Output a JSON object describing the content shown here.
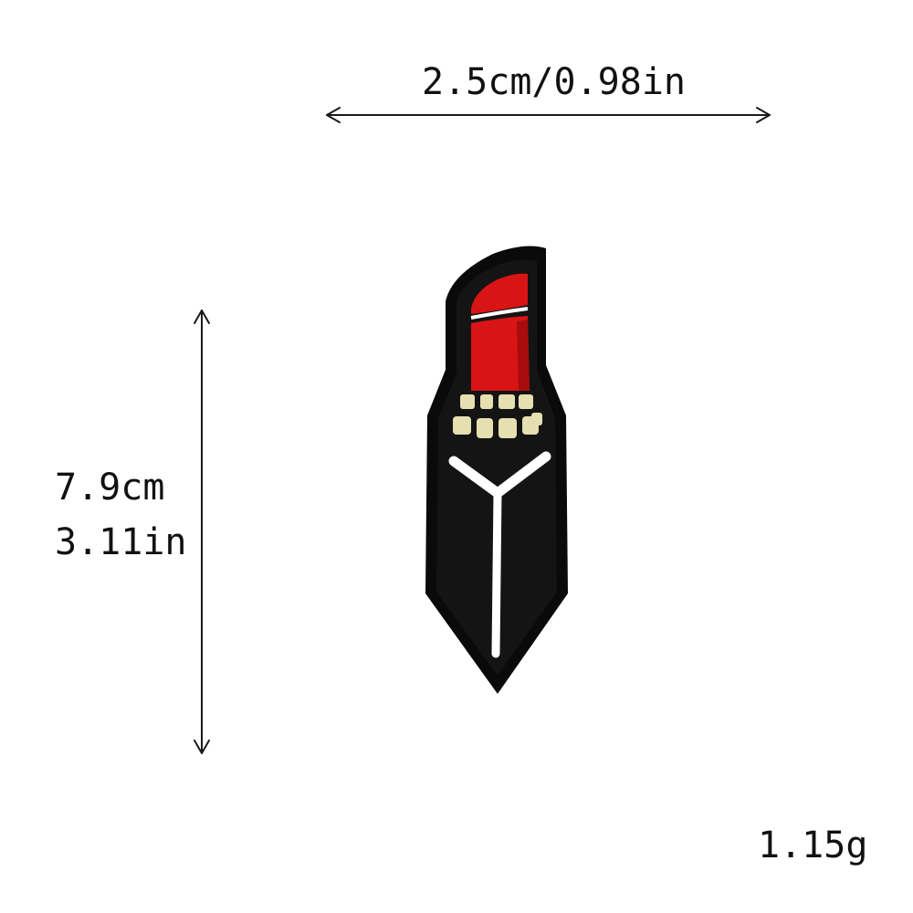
{
  "dimensions": {
    "width_text": "2.5cm/0.98in",
    "height_cm_text": "7.9cm",
    "height_in_text": "3.11in"
  },
  "weight_text": "1.15g",
  "product": {
    "icon": "lipstick-patch-icon",
    "colors": {
      "border": "#0a0a0a",
      "bullet": "#d91414",
      "bullet_dark": "#a80c0c",
      "collar": "#e6dfb0",
      "stripe": "#ffffff",
      "arrow": "#1a1a1a"
    }
  }
}
